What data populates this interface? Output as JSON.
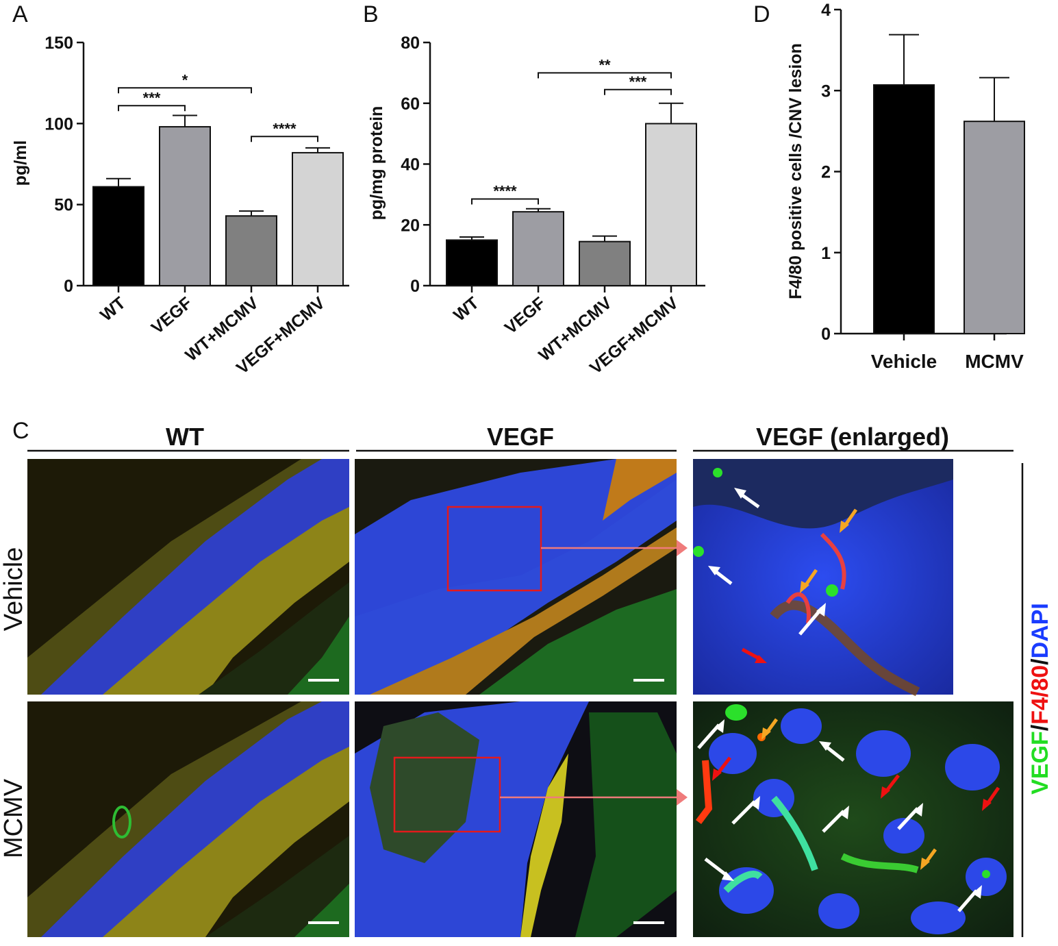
{
  "colors": {
    "black_bar": "#000000",
    "gray1": "#9d9da3",
    "gray2": "#808080",
    "gray3": "#d4d4d4",
    "vegf_green": "#22dd22",
    "f480_red": "#ee1111",
    "dapi_blue": "#1a3cff",
    "box_red": "#e41a1c",
    "arrow_pink": "#ef7b7b",
    "arrow_white": "#ffffff",
    "arrow_orange": "#f5a623"
  },
  "chart_data": [
    {
      "panel": "A",
      "type": "bar",
      "title": "",
      "ylabel": "pg/ml",
      "ylim": [
        0,
        150
      ],
      "yticks": [
        "0",
        "50",
        "100",
        "150"
      ],
      "categories": [
        "WT",
        "VEGF",
        "WT+MCMV",
        "VEGF+MCMV"
      ],
      "values": [
        61,
        98,
        43,
        82
      ],
      "errors": [
        5,
        7,
        3,
        3
      ],
      "bar_colors": [
        "#000000",
        "#9d9da3",
        "#808080",
        "#d4d4d4"
      ],
      "significance": [
        {
          "from": 0,
          "to": 1,
          "label": "***",
          "y": 111
        },
        {
          "from": 0,
          "to": 2,
          "label": "*",
          "y": 122
        },
        {
          "from": 2,
          "to": 3,
          "label": "****",
          "y": 92
        }
      ]
    },
    {
      "panel": "B",
      "type": "bar",
      "title": "",
      "ylabel": "pg/mg protein",
      "ylim": [
        0,
        80
      ],
      "yticks": [
        "0",
        "20",
        "40",
        "60",
        "80"
      ],
      "categories": [
        "WT",
        "VEGF",
        "WT+MCMV",
        "VEGF+MCMV"
      ],
      "values": [
        15,
        24.3,
        14.5,
        53.3
      ],
      "errors": [
        1,
        1,
        1.8,
        6.7
      ],
      "bar_colors": [
        "#000000",
        "#9d9da3",
        "#808080",
        "#d4d4d4"
      ],
      "significance": [
        {
          "from": 0,
          "to": 1,
          "label": "****",
          "y": 28.5
        },
        {
          "from": 1,
          "to": 3,
          "label": "**",
          "y": 70
        },
        {
          "from": 2,
          "to": 3,
          "label": "***",
          "y": 64.5
        }
      ]
    },
    {
      "panel": "D",
      "type": "bar",
      "title": "",
      "ylabel": "F4/80 positive cells /CNV lesion",
      "ylim": [
        0,
        4
      ],
      "yticks": [
        "0",
        "1",
        "2",
        "3",
        "4"
      ],
      "categories": [
        "Vehicle",
        "MCMV"
      ],
      "values": [
        3.07,
        2.62
      ],
      "errors": [
        0.62,
        0.54
      ],
      "bar_colors": [
        "#000000",
        "#9d9da3"
      ],
      "significance": []
    }
  ],
  "panel_c": {
    "letter": "C",
    "columns": [
      "WT",
      "VEGF",
      "VEGF (enlarged)"
    ],
    "rows": [
      "Vehicle",
      "MCMV"
    ],
    "stain": {
      "part1": "VEGF",
      "sep1": "/",
      "part2": "F4/80",
      "sep2": "/",
      "part3": "DAPI"
    }
  }
}
